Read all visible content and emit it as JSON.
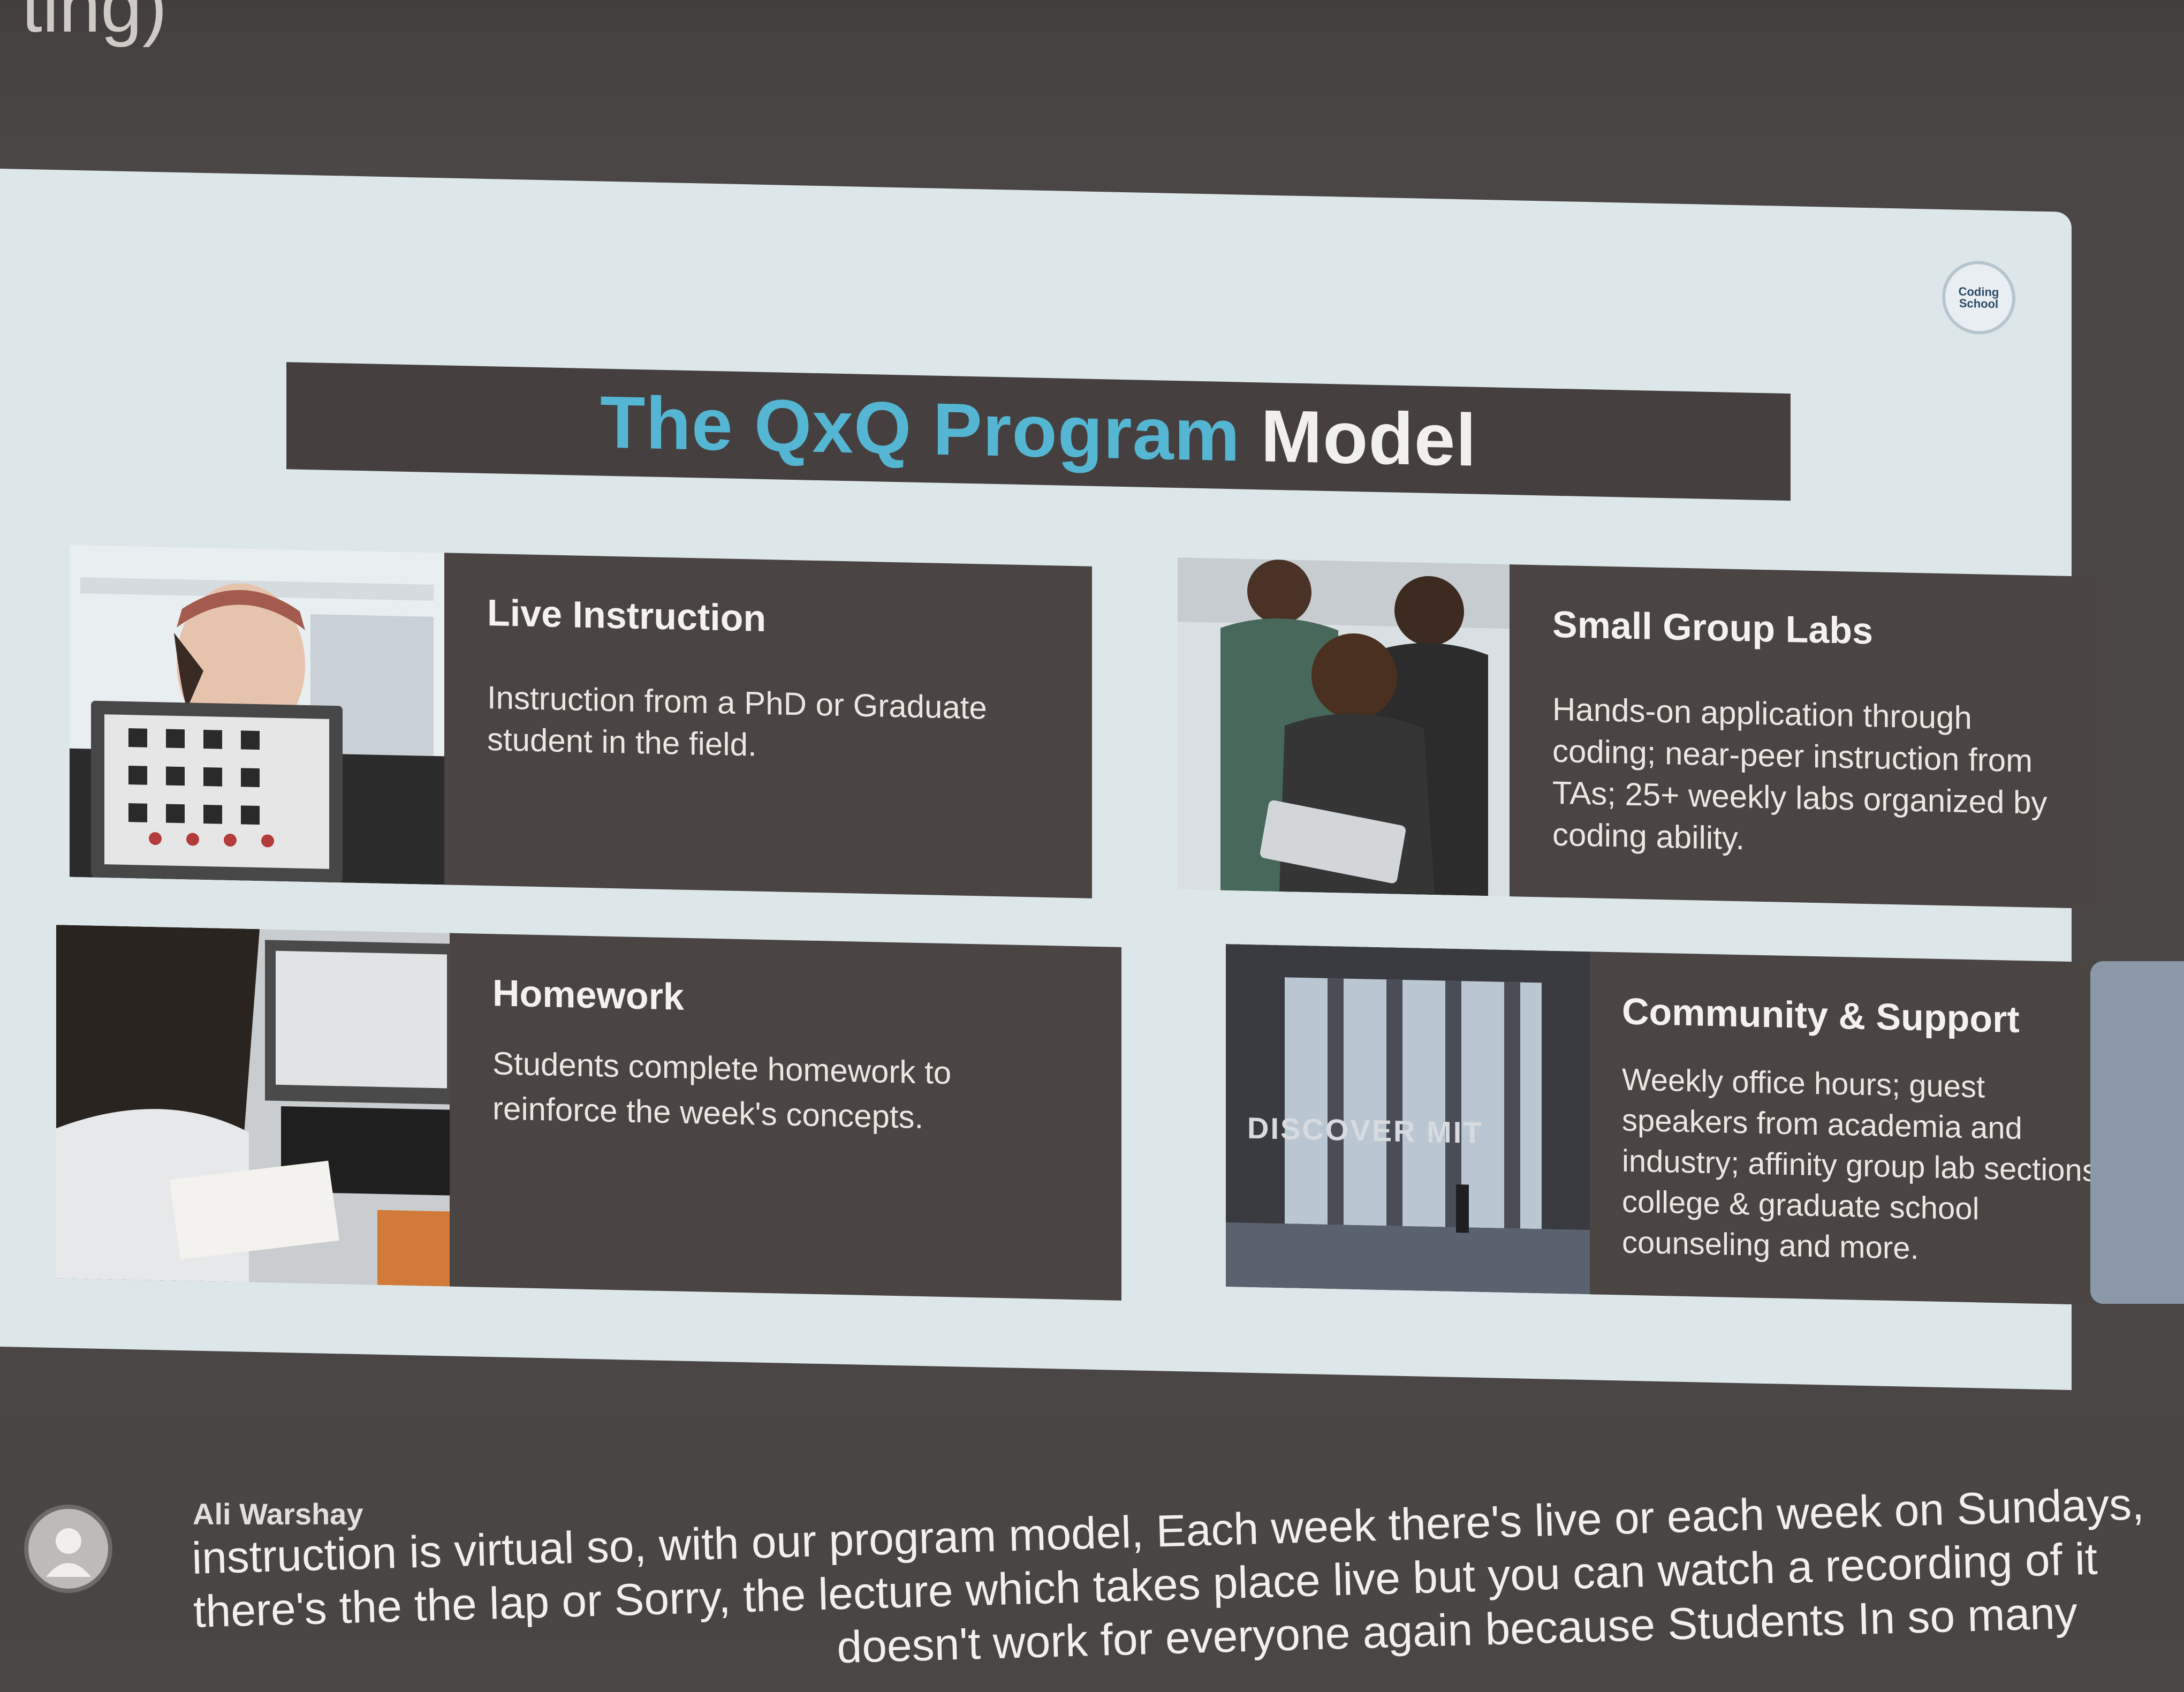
{
  "window": {
    "top_title_fragment": "ting)"
  },
  "slide": {
    "logo_text": "Coding School",
    "title_accent": "The QxQ Program",
    "title_rest": "Model",
    "cards": [
      {
        "heading": "Live Instruction",
        "body": "Instruction from a PhD or Graduate student in the field."
      },
      {
        "heading": "Small Group Labs",
        "body": "Hands-on application through coding; near-peer instruction from TAs; 25+ weekly labs organized by coding ability."
      },
      {
        "heading": "Homework",
        "body": "Students complete homework to reinforce the week's concepts."
      },
      {
        "heading": "Community & Support",
        "body": "Weekly office hours; guest speakers from academia and industry; affinity group lab sections; college & graduate school counseling and more."
      }
    ],
    "photo_overlay": "DISCOVER MIT"
  },
  "caption": {
    "speaker": "Ali Warshay",
    "lines": [
      "instruction is virtual so, with our program model, Each week there's live or each week on Sundays,",
      "there's the the lap or Sorry, the lecture which takes place live but you can watch a recording of it",
      "doesn't work for everyone again because Students In so many"
    ]
  }
}
